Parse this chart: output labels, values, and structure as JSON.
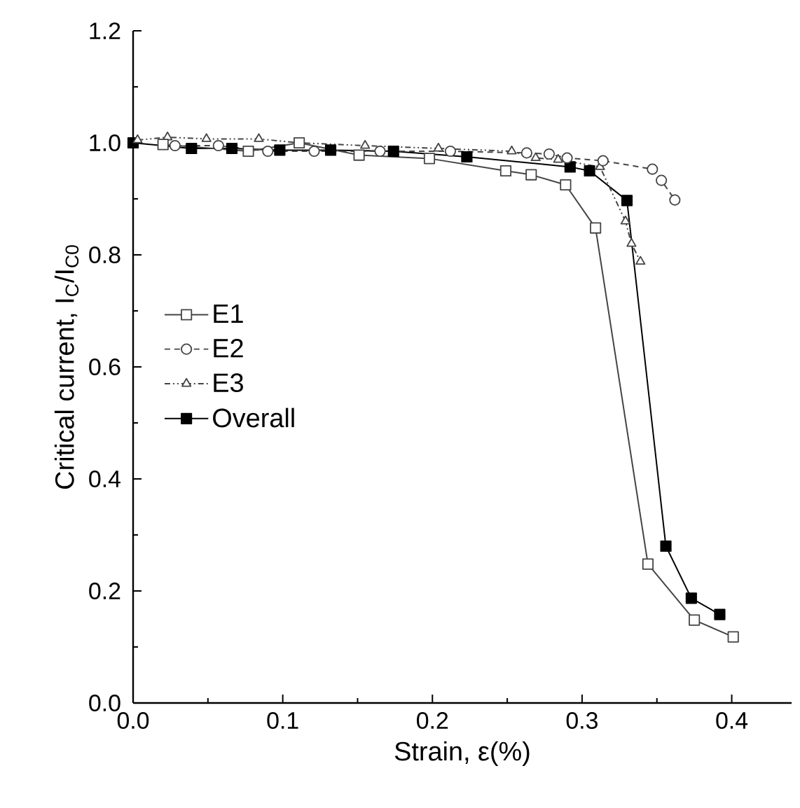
{
  "chart_data": {
    "type": "line",
    "xlabel": "Strain, ε(%)",
    "ylabel": "Critical current, I$_{C}$/I$_{C0}$",
    "xlim": [
      0,
      0.44
    ],
    "ylim": [
      0,
      1.2
    ],
    "xticks": [
      {
        "value": 0,
        "label": "0.0"
      },
      {
        "value": 0.1,
        "label": "0.1"
      },
      {
        "value": 0.2,
        "label": "0.2"
      },
      {
        "value": 0.3,
        "label": "0.3"
      },
      {
        "value": 0.4,
        "label": "0.4"
      }
    ],
    "yticks": [
      {
        "value": 0,
        "label": "0.0"
      },
      {
        "value": 0.2,
        "label": "0.2"
      },
      {
        "value": 0.4,
        "label": "0.4"
      },
      {
        "value": 0.6,
        "label": "0.6"
      },
      {
        "value": 0.8,
        "label": "0.8"
      },
      {
        "value": 1.0,
        "label": "1.0"
      },
      {
        "value": 1.2,
        "label": "1.2"
      }
    ],
    "grid": false,
    "legend": "left",
    "series": [
      {
        "name": "E1",
        "color": "#444444",
        "marker": "square",
        "line_style": "solid",
        "x": [
          0.02,
          0.077,
          0.111,
          0.151,
          0.198,
          0.249,
          0.266,
          0.289,
          0.309,
          0.344,
          0.375,
          0.401
        ],
        "values": [
          0.997,
          0.985,
          1.0,
          0.978,
          0.972,
          0.95,
          0.943,
          0.925,
          0.848,
          0.248,
          0.148,
          0.118
        ]
      },
      {
        "name": "E2",
        "color": "#444444",
        "marker": "circle",
        "line_style": "dashed",
        "x": [
          0.028,
          0.057,
          0.09,
          0.121,
          0.165,
          0.212,
          0.263,
          0.278,
          0.29,
          0.314,
          0.347,
          0.353,
          0.362
        ],
        "values": [
          0.995,
          0.995,
          0.985,
          0.985,
          0.985,
          0.985,
          0.982,
          0.98,
          0.973,
          0.968,
          0.953,
          0.933,
          0.898
        ]
      },
      {
        "name": "E3",
        "color": "#444444",
        "marker": "triangle",
        "line_style": "dashdotdotted",
        "x": [
          0.003,
          0.023,
          0.049,
          0.084,
          0.111,
          0.155,
          0.204,
          0.253,
          0.269,
          0.284,
          0.312,
          0.329,
          0.333,
          0.339
        ],
        "values": [
          1.005,
          1.01,
          1.007,
          1.007,
          1.0,
          0.995,
          0.99,
          0.985,
          0.973,
          0.97,
          0.957,
          0.86,
          0.82,
          0.788
        ]
      },
      {
        "name": "Overall",
        "color": "#000000",
        "marker": "square",
        "line_style": "solid",
        "x": [
          0,
          0.039,
          0.066,
          0.098,
          0.132,
          0.174,
          0.223,
          0.292,
          0.305,
          0.33,
          0.356,
          0.373,
          0.392
        ],
        "values": [
          1.0,
          0.99,
          0.99,
          0.987,
          0.987,
          0.985,
          0.975,
          0.957,
          0.95,
          0.897,
          0.28,
          0.187,
          0.158
        ]
      }
    ]
  }
}
